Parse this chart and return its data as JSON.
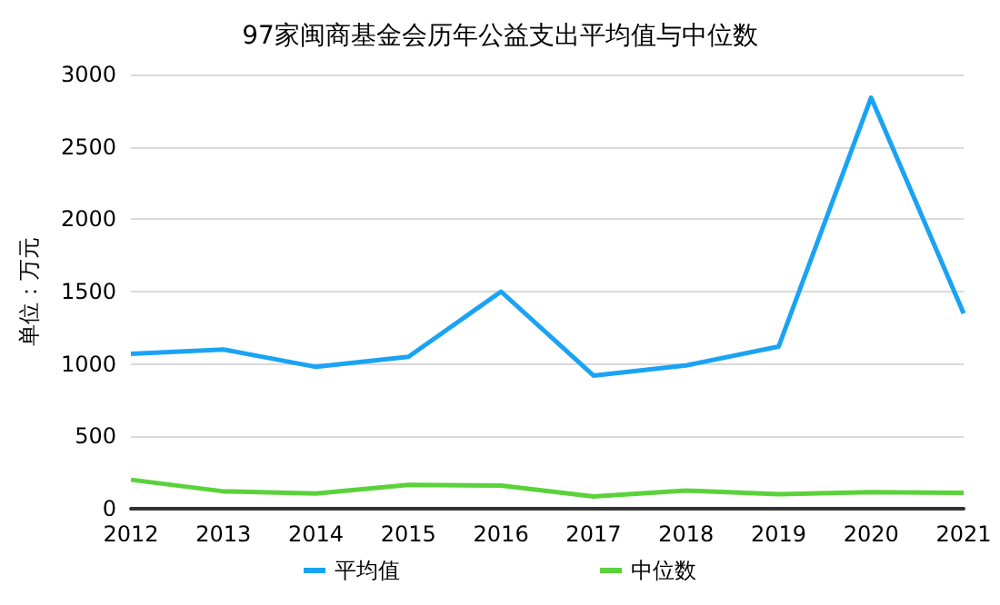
{
  "chart_data": {
    "type": "line",
    "title": "97家闽商基金会历年公益支出平均值与中位数",
    "ylabel": "单位：万元",
    "categories": [
      "2012",
      "2013",
      "2014",
      "2015",
      "2016",
      "2017",
      "2018",
      "2019",
      "2020",
      "2021"
    ],
    "series": [
      {
        "name": "平均值",
        "color": "#1aa3f5",
        "values": [
          1070,
          1100,
          980,
          1050,
          1500,
          920,
          990,
          1120,
          2840,
          1350
        ]
      },
      {
        "name": "中位数",
        "color": "#5ad23a",
        "values": [
          200,
          120,
          105,
          165,
          160,
          85,
          125,
          100,
          115,
          110
        ]
      }
    ],
    "ylim": [
      0,
      3000
    ],
    "yticks": [
      0,
      500,
      1000,
      1500,
      2000,
      2500,
      3000
    ],
    "grid": "y",
    "legend": "bottom",
    "marker": "none",
    "line_style": "solid"
  }
}
